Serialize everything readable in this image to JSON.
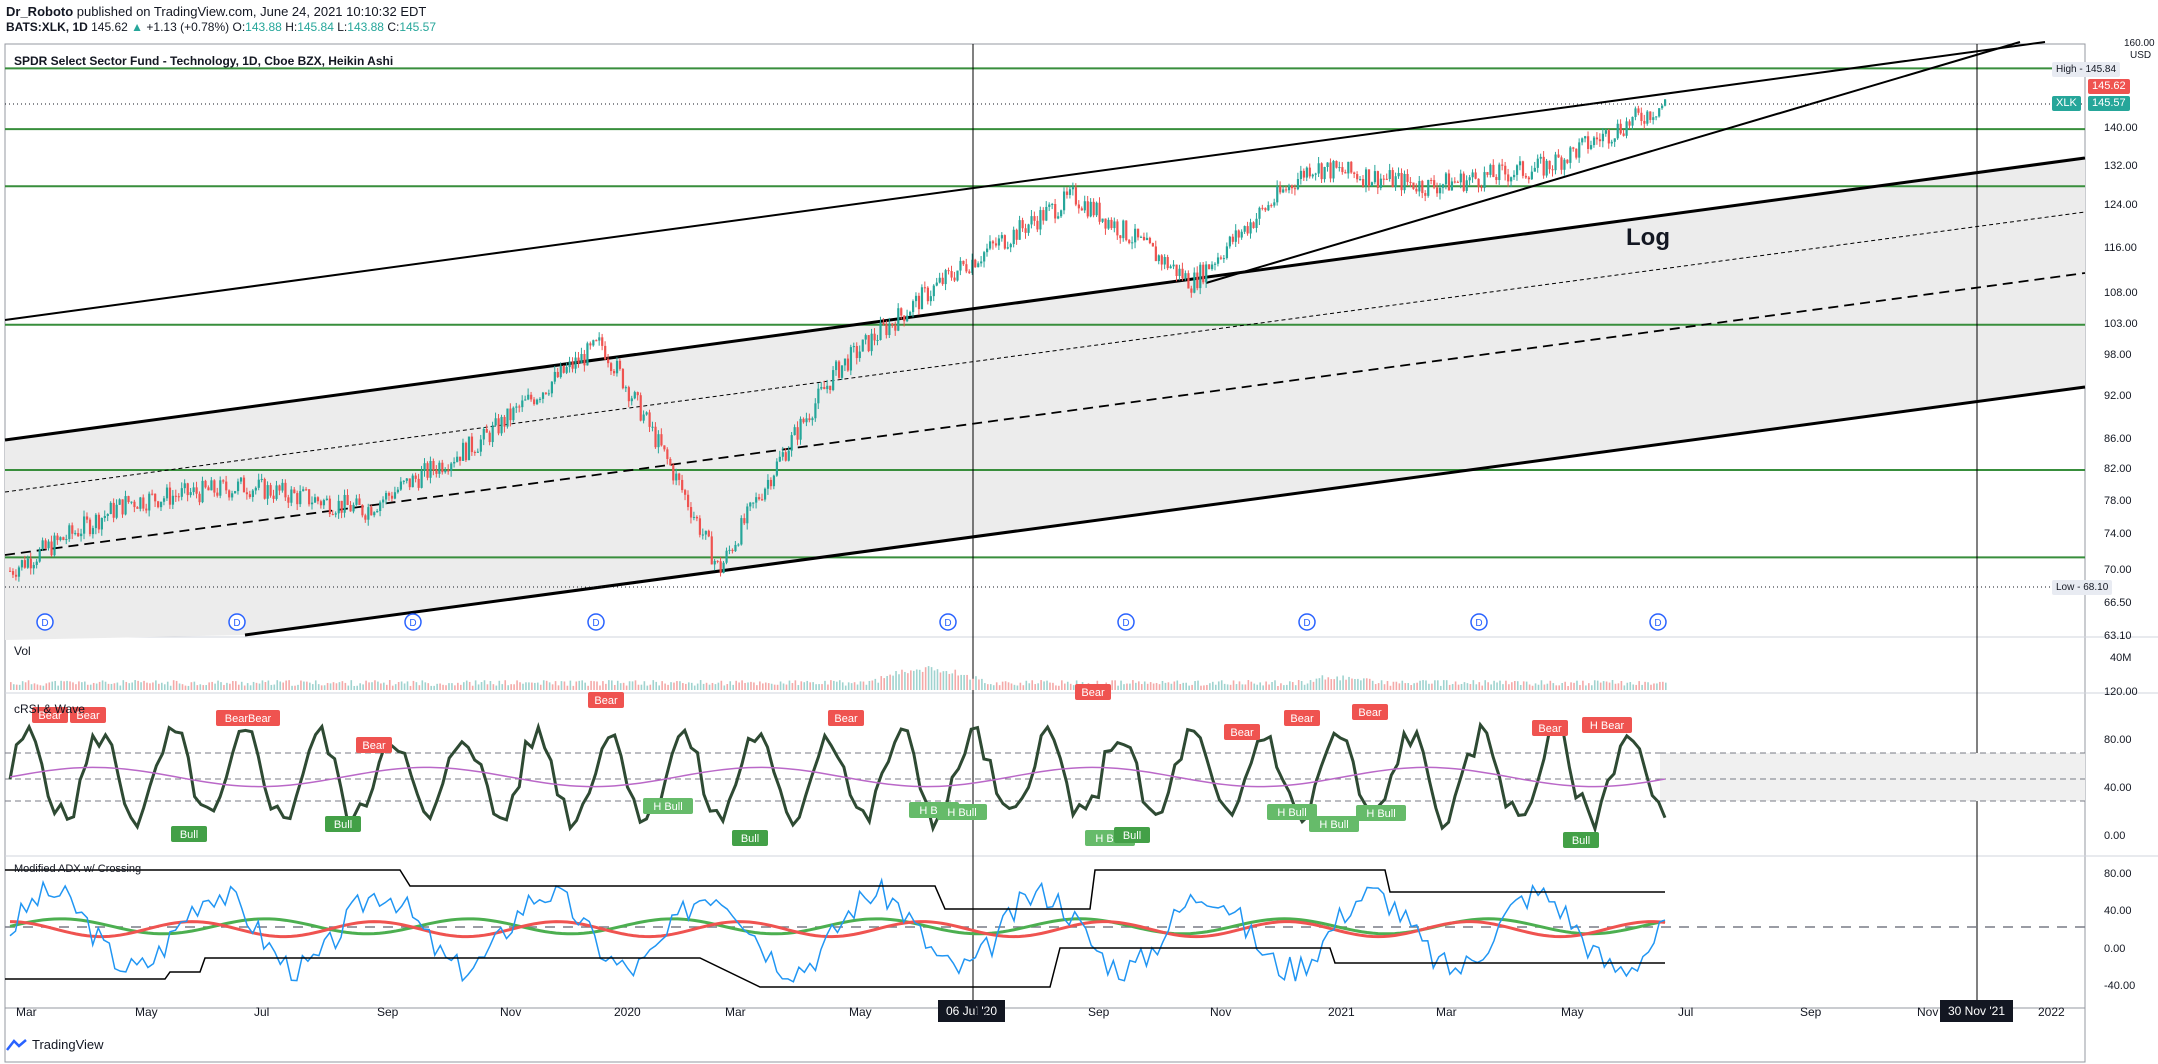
{
  "header": {
    "publisher": "Dr_Roboto",
    "published_text": "published on TradingView.com, June 24, 2021 10:10:32 EDT",
    "symbol": "BATS:XLK, 1D",
    "last": "145.62",
    "change": "+1.13 (+0.78%)",
    "o_label": "O:",
    "o": "143.88",
    "h_label": "H:",
    "h": "145.84",
    "l_label": "L:",
    "l": "143.88",
    "c_label": "C:",
    "c": "145.57"
  },
  "main_title": "SPDR Select Sector Fund - Technology, 1D, Cboe BZX, Heikin Ashi",
  "annotation": "Log",
  "price_axis": {
    "unit": "USD",
    "ticks": [
      "140.00",
      "132.00",
      "124.00",
      "116.00",
      "108.00",
      "103.00",
      "98.00",
      "92.00",
      "86.00",
      "82.00",
      "78.00",
      "74.00",
      "70.00",
      "66.50",
      "63.10"
    ],
    "top_tick": "160.00",
    "high_tag": "High - 145.84",
    "price_tag": "145.62",
    "symbol_tag": "XLK",
    "symbol_value": "145.57",
    "low_tag": "Low - 68.10"
  },
  "vol_pane": {
    "label": "Vol",
    "tick": "40M"
  },
  "rsi_pane": {
    "label": "cRSI & Wave",
    "ticks": [
      "120.00",
      "80.00",
      "40.00",
      "0.00"
    ],
    "markers": [
      {
        "t": "Bear",
        "x": 50,
        "y": 715,
        "c": "#ef5350"
      },
      {
        "t": "Bear",
        "x": 88,
        "y": 715,
        "c": "#ef5350"
      },
      {
        "t": "BearBear",
        "x": 248,
        "y": 718,
        "c": "#ef5350"
      },
      {
        "t": "Bear",
        "x": 374,
        "y": 745,
        "c": "#ef5350"
      },
      {
        "t": "Bear",
        "x": 606,
        "y": 700,
        "c": "#ef5350"
      },
      {
        "t": "Bear",
        "x": 846,
        "y": 718,
        "c": "#ef5350"
      },
      {
        "t": "Bear",
        "x": 1093,
        "y": 692,
        "c": "#ef5350"
      },
      {
        "t": "Bear",
        "x": 1242,
        "y": 732,
        "c": "#ef5350"
      },
      {
        "t": "Bear",
        "x": 1302,
        "y": 718,
        "c": "#ef5350"
      },
      {
        "t": "Bear",
        "x": 1370,
        "y": 712,
        "c": "#ef5350"
      },
      {
        "t": "Bear",
        "x": 1550,
        "y": 728,
        "c": "#ef5350"
      },
      {
        "t": "H Bear",
        "x": 1607,
        "y": 725,
        "c": "#ef5350"
      },
      {
        "t": "H Bull",
        "x": 668,
        "y": 806,
        "c": "#66bb6a"
      },
      {
        "t": "H Bull",
        "x": 934,
        "y": 810,
        "c": "#66bb6a"
      },
      {
        "t": "H Bull",
        "x": 962,
        "y": 812,
        "c": "#66bb6a"
      },
      {
        "t": "H Bull",
        "x": 1110,
        "y": 838,
        "c": "#66bb6a"
      },
      {
        "t": "H Bull",
        "x": 1292,
        "y": 812,
        "c": "#66bb6a"
      },
      {
        "t": "H Bull",
        "x": 1334,
        "y": 824,
        "c": "#66bb6a"
      },
      {
        "t": "H Bull",
        "x": 1381,
        "y": 813,
        "c": "#66bb6a"
      },
      {
        "t": "Bull",
        "x": 189,
        "y": 834,
        "c": "#43a047"
      },
      {
        "t": "Bull",
        "x": 343,
        "y": 824,
        "c": "#43a047"
      },
      {
        "t": "Bull",
        "x": 750,
        "y": 838,
        "c": "#43a047"
      },
      {
        "t": "Bull",
        "x": 1132,
        "y": 835,
        "c": "#43a047"
      },
      {
        "t": "Bull",
        "x": 1581,
        "y": 840,
        "c": "#43a047"
      }
    ]
  },
  "adx_pane": {
    "label": "Modified ADX w/ Crossing",
    "ticks": [
      "80.00",
      "40.00",
      "0.00",
      "-40.00"
    ]
  },
  "time_axis": {
    "labels": [
      {
        "t": "Mar",
        "x": 16
      },
      {
        "t": "May",
        "x": 135
      },
      {
        "t": "Jul",
        "x": 254
      },
      {
        "t": "Sep",
        "x": 377
      },
      {
        "t": "Nov",
        "x": 500
      },
      {
        "t": "2020",
        "x": 614
      },
      {
        "t": "Mar",
        "x": 725
      },
      {
        "t": "May",
        "x": 849
      },
      {
        "t": "Jul",
        "x": 972
      },
      {
        "t": "Sep",
        "x": 1088
      },
      {
        "t": "Nov",
        "x": 1210
      },
      {
        "t": "2021",
        "x": 1328
      },
      {
        "t": "Mar",
        "x": 1436
      },
      {
        "t": "May",
        "x": 1561
      },
      {
        "t": "Jul",
        "x": 1678
      },
      {
        "t": "Sep",
        "x": 1800
      },
      {
        "t": "Nov",
        "x": 1917
      },
      {
        "t": "2022",
        "x": 2038
      }
    ],
    "cursor1": "06 Jul '20",
    "cursor2": "30 Nov '21"
  },
  "dividends": {
    "marker": "D",
    "xs": [
      45,
      237,
      413,
      596,
      948,
      1126,
      1307,
      1479,
      1658
    ]
  },
  "footer": "TradingView",
  "colors": {
    "up": "#26a69a",
    "down": "#ef5350",
    "hline": "#388e3c",
    "channel_fill": "#ececec",
    "price_tag": "#ef5350",
    "symbol_tag": "#26a69a",
    "dividend": "#2962ff",
    "adx_blue": "#2196f3",
    "adx_green": "#4caf50",
    "adx_red": "#ef5350"
  },
  "chart_data": {
    "type": "line",
    "title": "SPDR Select Sector Fund - Technology, 1D, Cboe BZX, Heikin Ashi",
    "xlabel": "",
    "ylabel": "USD",
    "log_scale": true,
    "ylim": [
      63.1,
      160
    ],
    "x": [
      "Mar",
      "May",
      "Jul",
      "Sep",
      "Nov",
      "2020",
      "Mar",
      "May",
      "Jul",
      "Sep",
      "Nov",
      "2021",
      "Mar",
      "May",
      "Jul"
    ],
    "series": [
      {
        "values": [
          70,
          78,
          80,
          77,
          86,
          100,
          70,
          96,
          112,
          126,
          110,
          132,
          128,
          132,
          145.6
        ]
      }
    ],
    "horizontal_levels": [
      154,
      140,
      128,
      103,
      82,
      71.5
    ]
  }
}
